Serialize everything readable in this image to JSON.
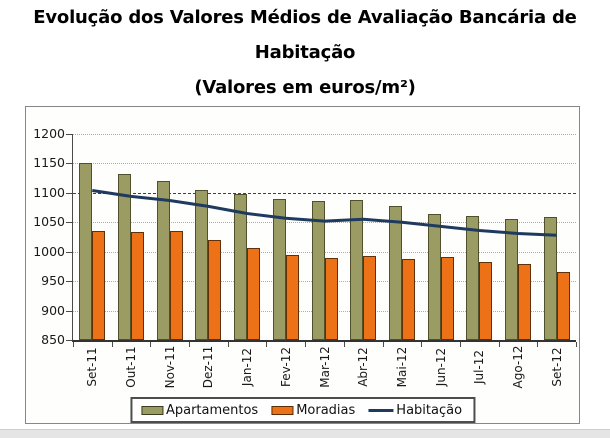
{
  "title": {
    "line1": "Evolução dos Valores Médios de Avaliação Bancária de",
    "line2": "Habitação",
    "line3": "(Valores em euros/m²)"
  },
  "colors": {
    "apartamentos": "#9b9b64",
    "moradias": "#ed7117",
    "habitacao": "#1f3a5f",
    "grid": "#adadad",
    "grid_emphasis": "#3f3f3f",
    "axis": "#4a4a4a",
    "frame_border": "#878787",
    "page_strip": "#e5e5e5"
  },
  "chart_data": {
    "type": "bar",
    "subtype": "grouped bars with overlaid line",
    "categories": [
      "Set-11",
      "Out-11",
      "Nov-11",
      "Dez-11",
      "Jan-12",
      "Fev-12",
      "Mar-12",
      "Abr-12",
      "Mai-12",
      "Jun-12",
      "Jul-12",
      "Ago-12",
      "Set-12"
    ],
    "series": [
      {
        "name": "Apartamentos",
        "type": "bar",
        "color": "#9b9b64",
        "values": [
          1150,
          1132,
          1120,
          1105,
          1098,
          1089,
          1086,
          1088,
          1078,
          1064,
          1060,
          1055,
          1059
        ]
      },
      {
        "name": "Moradias",
        "type": "bar",
        "color": "#ed7117",
        "values": [
          1035,
          1033,
          1036,
          1020,
          1007,
          995,
          990,
          993,
          988,
          991,
          983,
          979,
          966
        ]
      },
      {
        "name": "Habitação",
        "type": "line",
        "color": "#1f3a5f",
        "values": [
          1104,
          1094,
          1087,
          1077,
          1065,
          1057,
          1052,
          1055,
          1050,
          1043,
          1036,
          1031,
          1028
        ]
      }
    ],
    "ylabel": "",
    "xlabel": "",
    "ylim": [
      850,
      1200
    ],
    "ytick_step": 50,
    "grid": "horizontal dotted",
    "grid_emphasis_at": 1100,
    "legend_position": "bottom",
    "x_labels_rotation": -90
  }
}
